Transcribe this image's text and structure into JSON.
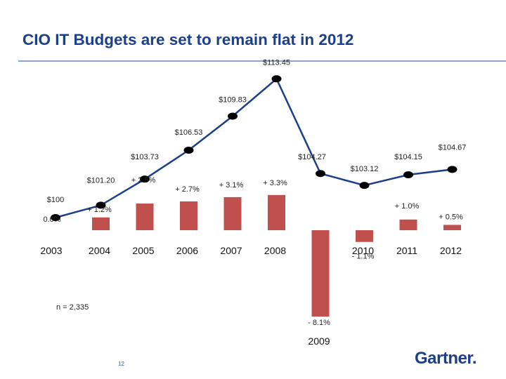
{
  "title": "CIO IT Budgets are set to remain flat in 2012",
  "note": "n = 2,335",
  "page_number": "12",
  "logo_text": "Gartner.",
  "colors": {
    "title": "#1b3f8b",
    "bar": "#c0504d",
    "line": "#1b3f8b",
    "marker": "#000000"
  },
  "chart_data": {
    "type": "bar",
    "categories": [
      "2003",
      "2004",
      "2005",
      "2006",
      "2007",
      "2008",
      "2009",
      "2010",
      "2011",
      "2012"
    ],
    "series": [
      {
        "type": "bar",
        "values": [
          0.0,
          1.2,
          2.5,
          2.7,
          3.1,
          3.3,
          -8.1,
          -1.1,
          1.0,
          0.5
        ],
        "labels": [
          "0.0%",
          "+ 1.2%",
          "+ 2.5%",
          "+ 2.7%",
          "+ 3.1%",
          "+ 3.3%",
          "- 8.1%",
          "- 1.1%",
          "+ 1.0%",
          "+ 0.5%"
        ]
      },
      {
        "type": "line",
        "values": [
          100,
          101.2,
          103.73,
          106.53,
          109.83,
          113.45,
          104.27,
          103.12,
          104.15,
          104.67
        ],
        "labels": [
          "$100",
          "$101.20",
          "$103.73",
          "$106.53",
          "$109.83",
          "$113.45",
          "$104.27",
          "$103.12",
          "$104.15",
          "$104.67"
        ]
      }
    ],
    "grid": false,
    "legend": "none"
  }
}
